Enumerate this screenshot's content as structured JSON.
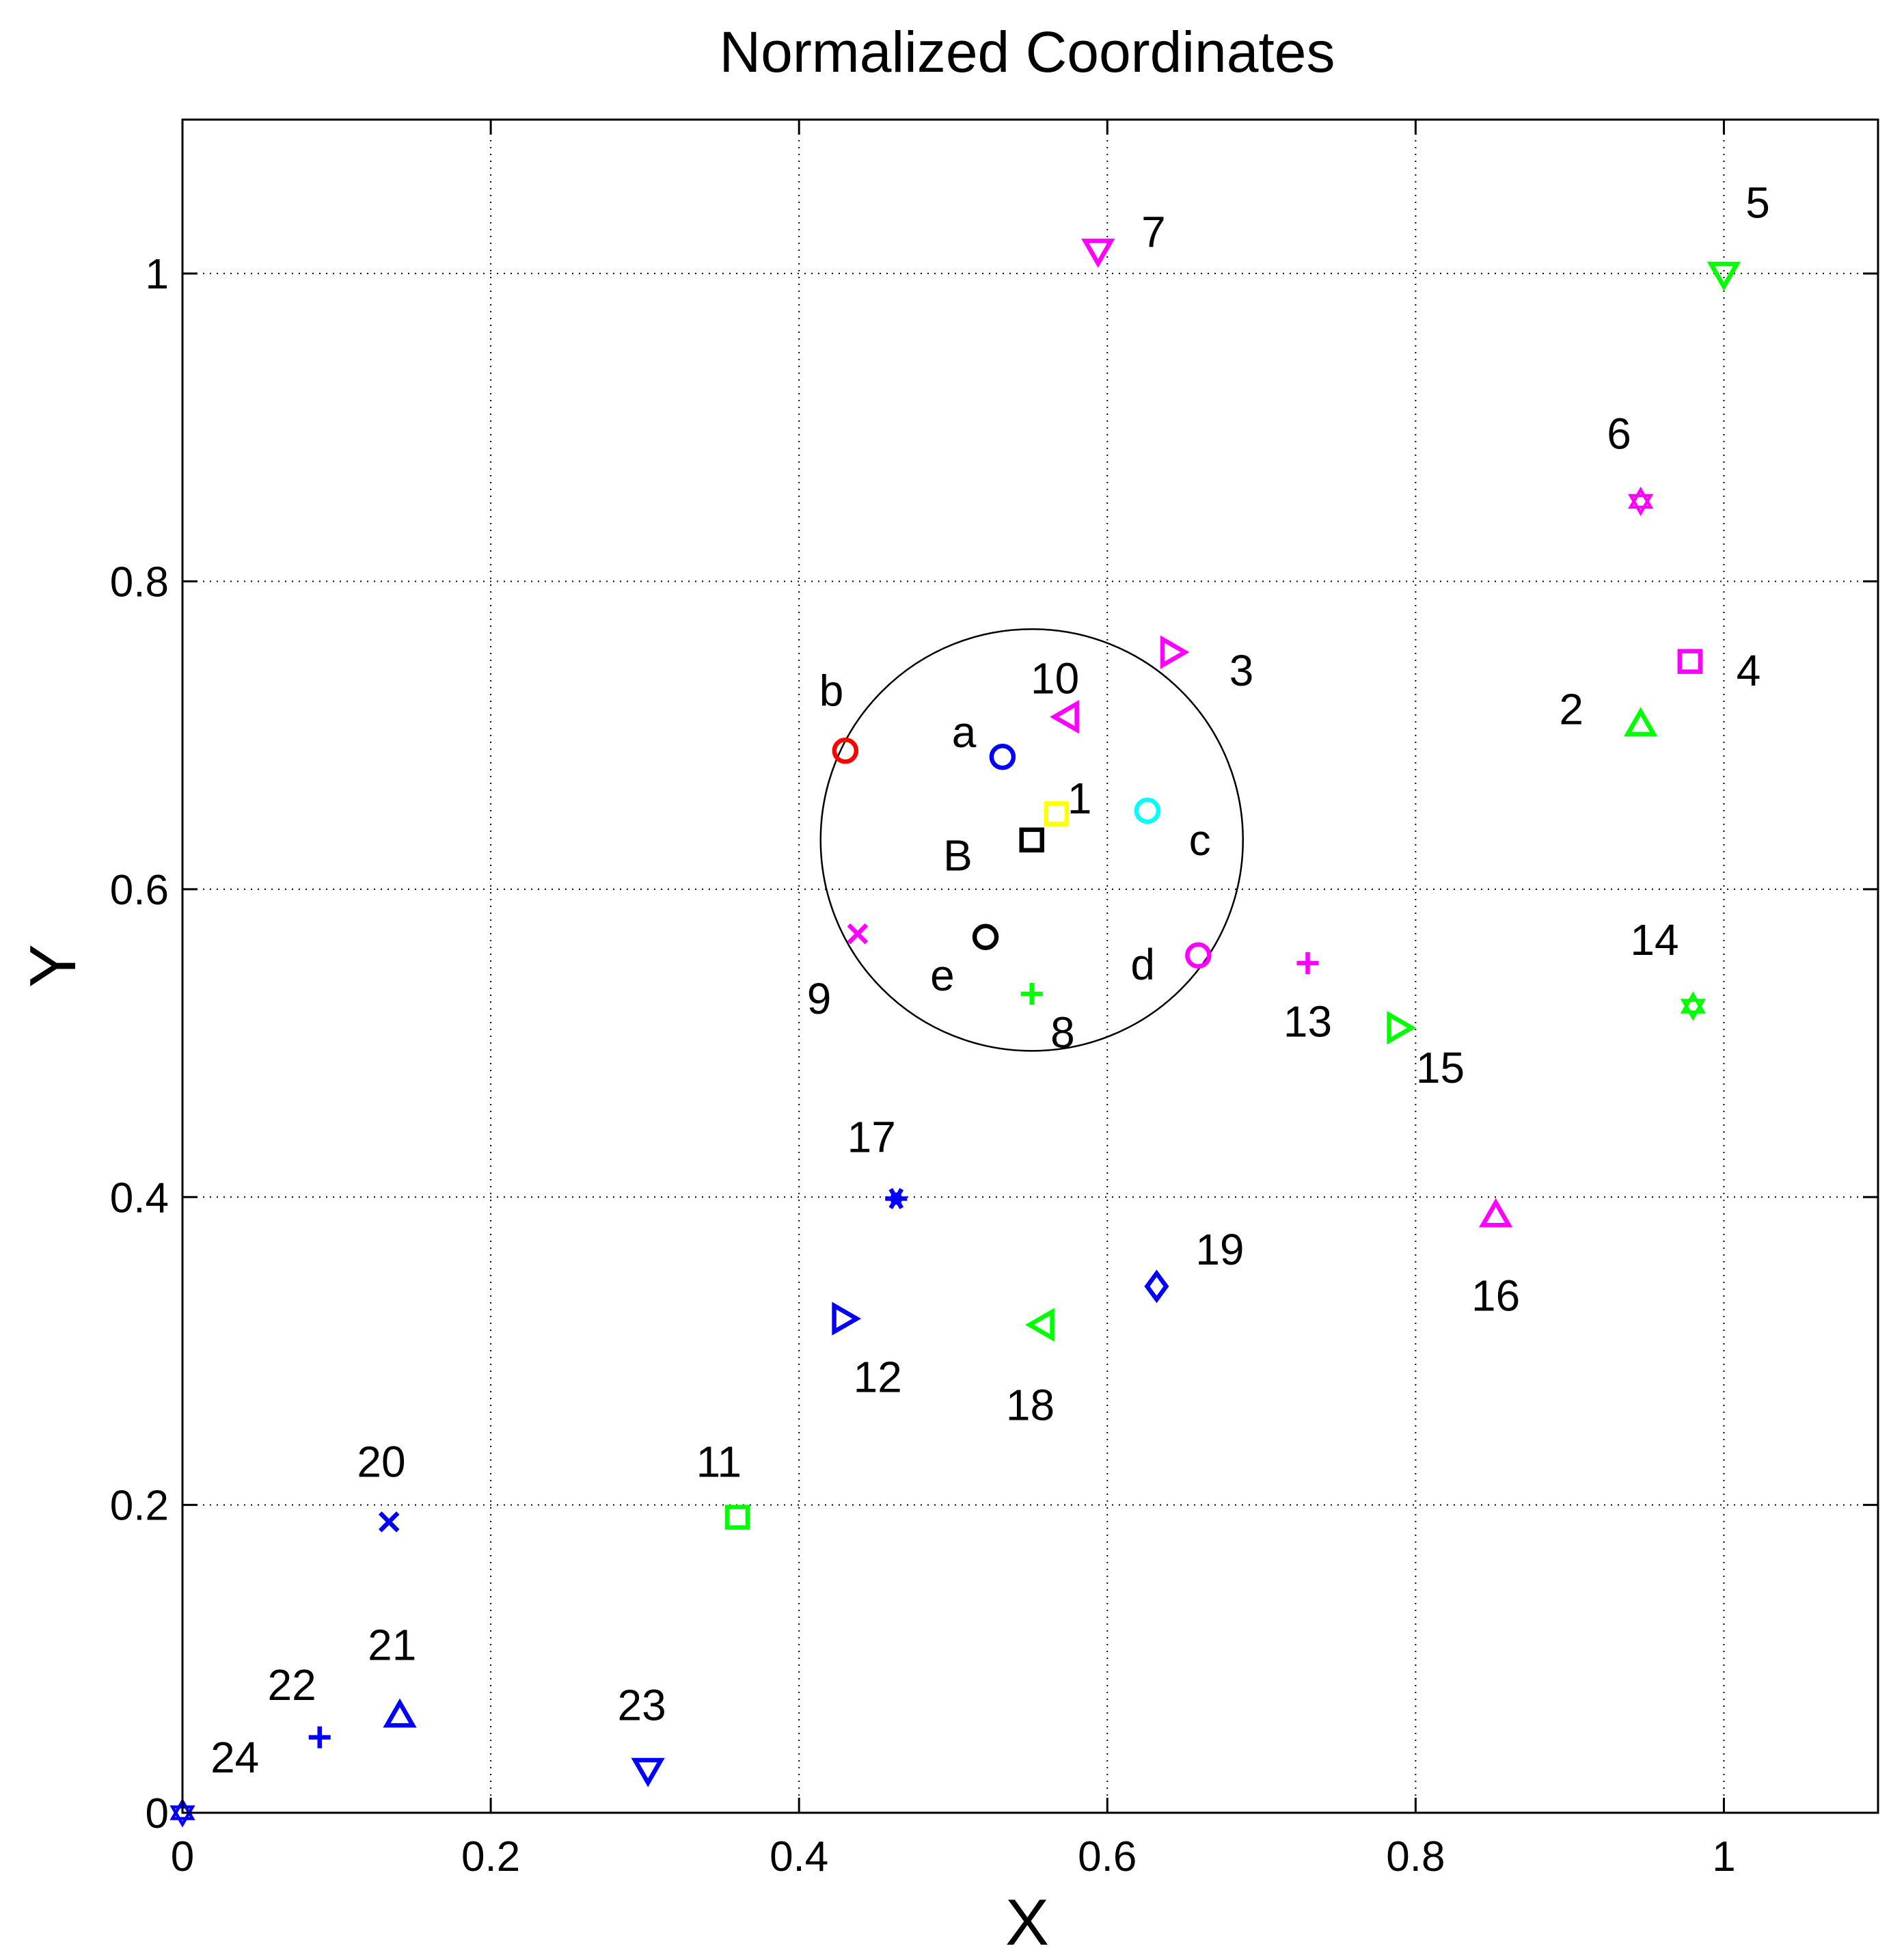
{
  "chart_data": {
    "type": "scatter",
    "title": "Normalized Coordinates",
    "xlabel": "X",
    "ylabel": "Y",
    "xlim": [
      0,
      1.1
    ],
    "ylim": [
      0,
      1.1
    ],
    "xticks": [
      0,
      0.2,
      0.4,
      0.6,
      0.8,
      1
    ],
    "yticks": [
      0,
      0.2,
      0.4,
      0.6,
      0.8,
      1
    ],
    "xtick_labels": [
      "0",
      "0.2",
      "0.4",
      "0.6",
      "0.8",
      "1"
    ],
    "ytick_labels": [
      "0",
      "0.2",
      "0.4",
      "0.6",
      "0.8",
      "1"
    ],
    "grid": "dotted",
    "circle": {
      "cx": 0.551,
      "cy": 0.632,
      "r": 0.137,
      "color": "#000000"
    },
    "points": [
      {
        "label": "1",
        "x": 0.567,
        "y": 0.649,
        "marker": "square",
        "color": "#ffff00",
        "lx": 0.015,
        "ly": 0.01
      },
      {
        "label": "2",
        "x": 0.946,
        "y": 0.707,
        "marker": "triangle-up",
        "color": "#00ff00",
        "lx": -0.045,
        "ly": 0.01
      },
      {
        "label": "3",
        "x": 0.642,
        "y": 0.754,
        "marker": "triangle-right",
        "color": "#ff00ff",
        "lx": 0.045,
        "ly": -0.012
      },
      {
        "label": "4",
        "x": 0.978,
        "y": 0.748,
        "marker": "square",
        "color": "#ff00ff",
        "lx": 0.038,
        "ly": -0.006
      },
      {
        "label": "5",
        "x": 1.0,
        "y": 1.0,
        "marker": "triangle-down",
        "color": "#00ff00",
        "lx": 0.022,
        "ly": 0.046
      },
      {
        "label": "6",
        "x": 0.946,
        "y": 0.852,
        "marker": "hexagram",
        "color": "#ff00ff",
        "lx": -0.014,
        "ly": 0.044
      },
      {
        "label": "7",
        "x": 0.594,
        "y": 1.015,
        "marker": "triangle-down",
        "color": "#ff00ff",
        "lx": 0.036,
        "ly": 0.012
      },
      {
        "label": "8",
        "x": 0.551,
        "y": 0.532,
        "marker": "plus",
        "color": "#00ff00",
        "lx": 0.02,
        "ly": -0.025
      },
      {
        "label": "9",
        "x": 0.438,
        "y": 0.571,
        "marker": "x",
        "color": "#ff00ff",
        "lx": -0.025,
        "ly": -0.042
      },
      {
        "label": "10",
        "x": 0.574,
        "y": 0.712,
        "marker": "triangle-left",
        "color": "#ff00ff",
        "lx": -0.008,
        "ly": 0.025
      },
      {
        "label": "11",
        "x": 0.36,
        "y": 0.192,
        "marker": "square",
        "color": "#00ff00",
        "lx": -0.012,
        "ly": 0.036
      },
      {
        "label": "12",
        "x": 0.429,
        "y": 0.321,
        "marker": "triangle-right",
        "color": "#0000ff",
        "lx": 0.022,
        "ly": -0.038
      },
      {
        "label": "13",
        "x": 0.73,
        "y": 0.552,
        "marker": "plus",
        "color": "#ff00ff",
        "lx": 0.0,
        "ly": -0.038
      },
      {
        "label": "14",
        "x": 0.98,
        "y": 0.524,
        "marker": "hexagram",
        "color": "#00ff00",
        "lx": -0.025,
        "ly": 0.043
      },
      {
        "label": "15",
        "x": 0.789,
        "y": 0.51,
        "marker": "triangle-right",
        "color": "#00ff00",
        "lx": 0.027,
        "ly": -0.026
      },
      {
        "label": "16",
        "x": 0.852,
        "y": 0.388,
        "marker": "triangle-up",
        "color": "#ff00ff",
        "lx": 0.0,
        "ly": -0.052
      },
      {
        "label": "17",
        "x": 0.463,
        "y": 0.399,
        "marker": "asterisk",
        "color": "#0000ff",
        "lx": -0.016,
        "ly": 0.04
      },
      {
        "label": "18",
        "x": 0.558,
        "y": 0.317,
        "marker": "triangle-left",
        "color": "#00ff00",
        "lx": -0.008,
        "ly": -0.052
      },
      {
        "label": "19",
        "x": 0.632,
        "y": 0.342,
        "marker": "diamond",
        "color": "#0000ff",
        "lx": 0.041,
        "ly": 0.024
      },
      {
        "label": "20",
        "x": 0.134,
        "y": 0.189,
        "marker": "x",
        "color": "#0000ff",
        "lx": -0.005,
        "ly": 0.039
      },
      {
        "label": "21",
        "x": 0.141,
        "y": 0.063,
        "marker": "triangle-up",
        "color": "#0000ff",
        "lx": -0.005,
        "ly": 0.046
      },
      {
        "label": "22",
        "x": 0.089,
        "y": 0.049,
        "marker": "plus",
        "color": "#0000ff",
        "lx": -0.018,
        "ly": 0.034
      },
      {
        "label": "23",
        "x": 0.302,
        "y": 0.028,
        "marker": "triangle-down",
        "color": "#0000ff",
        "lx": -0.004,
        "ly": 0.042
      },
      {
        "label": "24",
        "x": 0.0,
        "y": 0.0,
        "marker": "hexagram",
        "color": "#0000ff",
        "lx": 0.034,
        "ly": 0.036
      },
      {
        "label": "a",
        "x": 0.532,
        "y": 0.686,
        "marker": "circle",
        "color": "#0000ff",
        "lx": -0.025,
        "ly": 0.016
      },
      {
        "label": "b",
        "x": 0.43,
        "y": 0.69,
        "marker": "circle",
        "color": "#ff0000",
        "lx": -0.009,
        "ly": 0.039
      },
      {
        "label": "c",
        "x": 0.626,
        "y": 0.651,
        "marker": "circle",
        "color": "#00ffff",
        "lx": 0.034,
        "ly": -0.019
      },
      {
        "label": "d",
        "x": 0.659,
        "y": 0.557,
        "marker": "circle",
        "color": "#ff00ff",
        "lx": -0.036,
        "ly": -0.006
      },
      {
        "label": "e",
        "x": 0.521,
        "y": 0.569,
        "marker": "circle",
        "color": "#000000",
        "lx": -0.028,
        "ly": -0.025
      },
      {
        "label": "B",
        "x": 0.551,
        "y": 0.632,
        "marker": "square",
        "color": "#000000",
        "lx": -0.048,
        "ly": -0.01
      }
    ]
  }
}
